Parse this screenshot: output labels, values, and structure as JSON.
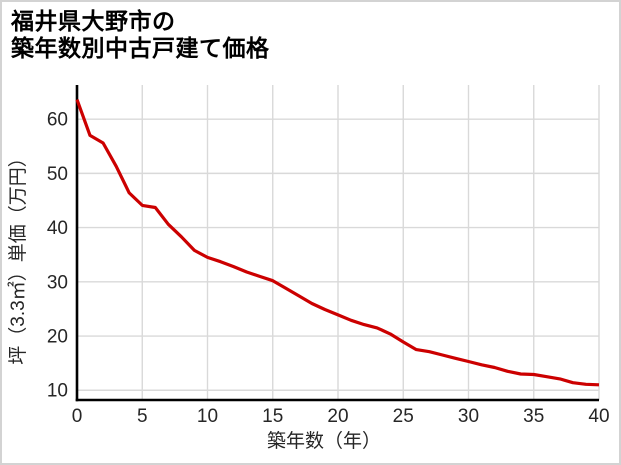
{
  "title": {
    "line1": "福井県大野市の",
    "line2": "築年数別中古戸建て価格"
  },
  "chart_data": {
    "type": "line",
    "title": "福井県大野市の築年数別中古戸建て価格",
    "xlabel": "築年数（年）",
    "ylabel": "坪（3.3㎡）単価（万円）",
    "x": [
      0,
      1,
      2,
      3,
      4,
      5,
      6,
      7,
      8,
      9,
      10,
      11,
      12,
      13,
      14,
      15,
      16,
      17,
      18,
      19,
      20,
      21,
      22,
      23,
      24,
      25,
      26,
      27,
      28,
      29,
      30,
      31,
      32,
      33,
      34,
      35,
      36,
      37,
      38,
      39,
      40
    ],
    "values": [
      63.6,
      57.0,
      55.6,
      51.3,
      46.4,
      44.1,
      43.7,
      40.6,
      38.3,
      35.8,
      34.5,
      33.7,
      32.8,
      31.8,
      31.0,
      30.2,
      28.8,
      27.4,
      26.0,
      24.9,
      23.9,
      22.9,
      22.1,
      21.5,
      20.4,
      18.9,
      17.5,
      17.1,
      16.5,
      15.9,
      15.3,
      14.7,
      14.2,
      13.5,
      13.0,
      12.9,
      12.5,
      12.1,
      11.4,
      11.1,
      11.0
    ],
    "x_ticks": [
      0,
      5,
      10,
      15,
      20,
      25,
      30,
      35,
      40
    ],
    "y_ticks": [
      10,
      20,
      30,
      40,
      50,
      60
    ],
    "xlim": [
      0,
      40
    ],
    "ylim": [
      8.2,
      66.3
    ],
    "grid": true,
    "legend": "none",
    "colors": {
      "line": "#CC0000",
      "grid": "#D9D9D9",
      "spine": "#000000",
      "tick_label": "#262626",
      "title": "#000000",
      "frame": "#D3D3D3",
      "background": "#FFFFFF"
    }
  }
}
